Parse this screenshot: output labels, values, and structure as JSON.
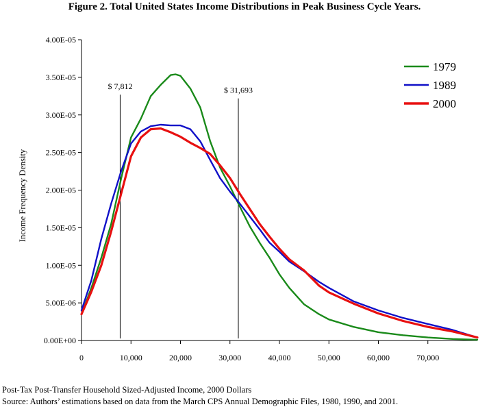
{
  "title": "Figure 2. Total United States Income Distributions in Peak Business Cycle Years.",
  "footer": {
    "xlabel": "Post-Tax Post-Transfer Household Sized-Adjusted Income, 2000 Dollars",
    "source": "Source: Authors’ estimations based on data from the March CPS Annual Demographic Files, 1980, 1990, and 2001."
  },
  "chart_data": {
    "type": "line",
    "title": "Figure 2. Total United States Income Distributions in Peak Business Cycle Years.",
    "xlabel": "Post-Tax Post-Transfer Household Sized-Adjusted Income, 2000 Dollars",
    "ylabel": "Income Frequency Density",
    "xlim": [
      0,
      80000
    ],
    "ylim": [
      0,
      4e-05
    ],
    "x_ticks": [
      0,
      10000,
      20000,
      30000,
      40000,
      50000,
      60000,
      70000
    ],
    "x_tick_labels": [
      "0",
      "10,000",
      "20,000",
      "30,000",
      "40,000",
      "50,000",
      "60,000",
      "70,000"
    ],
    "y_ticks": [
      0,
      5e-06,
      1e-05,
      1.5e-05,
      2e-05,
      2.5e-05,
      3e-05,
      3.5e-05,
      4e-05
    ],
    "y_tick_labels": [
      "0.00E+00",
      "5.00E-06",
      "1.00E-05",
      "1.50E-05",
      "2.00E-05",
      "2.50E-05",
      "3.00E-05",
      "3.50E-05",
      "4.00E-05"
    ],
    "grid": false,
    "legend_position": "top-right",
    "annotations": [
      {
        "label": "$ 7,812",
        "x": 7812,
        "y_top": 3.27e-05
      },
      {
        "label": "$ 31,693",
        "x": 31693,
        "y_top": 3.22e-05
      }
    ],
    "series": [
      {
        "name": "1979",
        "color": "#1a8a1a",
        "x": [
          0,
          2000,
          4000,
          6000,
          8000,
          10000,
          12000,
          14000,
          16000,
          18000,
          19000,
          20000,
          22000,
          24000,
          26000,
          28000,
          30000,
          32000,
          34000,
          36000,
          38000,
          40000,
          42000,
          45000,
          48000,
          50000,
          55000,
          60000,
          65000,
          70000,
          75000,
          80000
        ],
        "y": [
          3.5e-06,
          7e-06,
          1.1e-05,
          1.55e-05,
          2.15e-05,
          2.7e-05,
          2.95e-05,
          3.25e-05,
          3.4e-05,
          3.53e-05,
          3.54e-05,
          3.52e-05,
          3.35e-05,
          3.1e-05,
          2.65e-05,
          2.3e-05,
          2.05e-05,
          1.78e-05,
          1.52e-05,
          1.3e-05,
          1.1e-05,
          8.8e-06,
          7e-06,
          4.8e-06,
          3.5e-06,
          2.8e-06,
          1.8e-06,
          1.1e-06,
          7e-07,
          4e-07,
          2e-07,
          1e-07
        ]
      },
      {
        "name": "1989",
        "color": "#1010c8",
        "x": [
          0,
          2000,
          4000,
          6000,
          8000,
          10000,
          12000,
          14000,
          16000,
          18000,
          20000,
          22000,
          24000,
          26000,
          28000,
          30000,
          32000,
          34000,
          36000,
          38000,
          40000,
          42000,
          45000,
          48000,
          50000,
          55000,
          60000,
          65000,
          70000,
          75000,
          80000
        ],
        "y": [
          4e-06,
          8e-06,
          1.35e-05,
          1.82e-05,
          2.25e-05,
          2.62e-05,
          2.78e-05,
          2.85e-05,
          2.87e-05,
          2.86e-05,
          2.86e-05,
          2.81e-05,
          2.65e-05,
          2.4e-05,
          2.16e-05,
          1.98e-05,
          1.82e-05,
          1.65e-05,
          1.48e-05,
          1.3e-05,
          1.18e-05,
          1.05e-05,
          9.2e-06,
          7.8e-06,
          7e-06,
          5.2e-06,
          4e-06,
          3e-06,
          2.2e-06,
          1.4e-06,
          4e-07
        ]
      },
      {
        "name": "2000",
        "color": "#e81010",
        "x": [
          0,
          2000,
          4000,
          6000,
          8000,
          10000,
          12000,
          14000,
          16000,
          18000,
          20000,
          22000,
          24000,
          26000,
          28000,
          30000,
          32000,
          34000,
          36000,
          38000,
          40000,
          42000,
          45000,
          48000,
          50000,
          55000,
          60000,
          65000,
          70000,
          75000,
          80000
        ],
        "y": [
          3.5e-06,
          6.5e-06,
          1e-05,
          1.45e-05,
          1.95e-05,
          2.45e-05,
          2.7e-05,
          2.81e-05,
          2.82e-05,
          2.77e-05,
          2.71e-05,
          2.63e-05,
          2.56e-05,
          2.48e-05,
          2.33e-05,
          2.16e-05,
          1.95e-05,
          1.75e-05,
          1.55e-05,
          1.38e-05,
          1.22e-05,
          1.08e-05,
          9.3e-06,
          7.3e-06,
          6.4e-06,
          4.9e-06,
          3.6e-06,
          2.6e-06,
          1.8e-06,
          1.2e-06,
          4e-07
        ]
      }
    ]
  }
}
